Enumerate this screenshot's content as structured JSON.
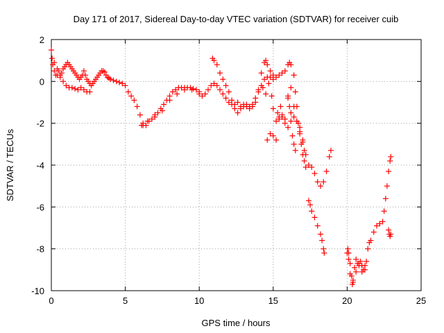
{
  "chart_data": {
    "type": "scatter",
    "title": "Day 171 of 2017, Sidereal Day-to-day VTEC variation (SDTVAR) for receiver cuib",
    "xlabel": "GPS time / hours",
    "ylabel": "SDTVAR / TECUs",
    "xlim": [
      0,
      25
    ],
    "ylim": [
      -10,
      2
    ],
    "x_ticks": [
      0,
      5,
      10,
      15,
      20,
      25
    ],
    "y_ticks": [
      -10,
      -8,
      -6,
      -4,
      -2,
      0,
      2
    ],
    "grid": true,
    "marker": "+",
    "color": "#ff0000",
    "series": [
      {
        "points": [
          [
            0.0,
            1.5
          ],
          [
            0.05,
            1.1
          ],
          [
            0.1,
            0.8
          ],
          [
            0.2,
            0.5
          ],
          [
            0.3,
            0.3
          ],
          [
            0.4,
            0.3
          ],
          [
            0.5,
            0.5
          ],
          [
            0.6,
            0.3
          ],
          [
            0.7,
            0.4
          ],
          [
            0.8,
            0.6
          ],
          [
            0.9,
            0.7
          ],
          [
            1.0,
            0.8
          ],
          [
            1.1,
            0.9
          ],
          [
            1.2,
            0.8
          ],
          [
            1.3,
            0.7
          ],
          [
            1.4,
            0.6
          ],
          [
            1.5,
            0.5
          ],
          [
            1.6,
            0.4
          ],
          [
            1.7,
            0.3
          ],
          [
            1.8,
            0.2
          ],
          [
            1.9,
            0.1
          ],
          [
            2.0,
            0.2
          ],
          [
            2.1,
            0.3
          ],
          [
            2.2,
            0.5
          ],
          [
            2.3,
            0.3
          ],
          [
            2.4,
            0.1
          ],
          [
            2.5,
            0.0
          ],
          [
            2.6,
            -0.1
          ],
          [
            2.7,
            -0.2
          ],
          [
            2.8,
            -0.1
          ],
          [
            2.9,
            0.0
          ],
          [
            3.0,
            0.1
          ],
          [
            3.1,
            0.2
          ],
          [
            3.2,
            0.3
          ],
          [
            3.3,
            0.4
          ],
          [
            3.4,
            0.5
          ],
          [
            3.5,
            0.5
          ],
          [
            3.6,
            0.45
          ],
          [
            3.7,
            0.3
          ],
          [
            3.8,
            0.2
          ],
          [
            3.9,
            0.15
          ],
          [
            4.0,
            0.1
          ],
          [
            4.2,
            0.05
          ],
          [
            4.4,
            0.0
          ],
          [
            4.6,
            -0.05
          ],
          [
            4.8,
            -0.1
          ],
          [
            5.0,
            -0.2
          ],
          [
            0.2,
            0.9
          ],
          [
            0.4,
            0.6
          ],
          [
            0.6,
            0.2
          ],
          [
            0.8,
            0.0
          ],
          [
            1.0,
            -0.2
          ],
          [
            1.2,
            -0.3
          ],
          [
            1.4,
            -0.3
          ],
          [
            1.6,
            -0.35
          ],
          [
            1.8,
            -0.4
          ],
          [
            2.0,
            -0.3
          ],
          [
            2.2,
            -0.4
          ],
          [
            2.4,
            -0.5
          ],
          [
            2.6,
            -0.5
          ],
          [
            5.2,
            -0.5
          ],
          [
            5.4,
            -0.7
          ],
          [
            5.6,
            -0.9
          ],
          [
            5.8,
            -1.2
          ],
          [
            6.0,
            -1.6
          ],
          [
            6.1,
            -2.1
          ],
          [
            6.2,
            -2.0
          ],
          [
            6.4,
            -2.1
          ],
          [
            6.6,
            -1.9
          ],
          [
            6.8,
            -1.8
          ],
          [
            7.0,
            -1.6
          ],
          [
            7.2,
            -1.5
          ],
          [
            7.4,
            -1.3
          ],
          [
            7.6,
            -1.1
          ],
          [
            7.8,
            -0.9
          ],
          [
            8.0,
            -0.7
          ],
          [
            8.2,
            -0.5
          ],
          [
            8.4,
            -0.4
          ],
          [
            8.6,
            -0.3
          ],
          [
            8.8,
            -0.3
          ],
          [
            9.0,
            -0.3
          ],
          [
            9.2,
            -0.3
          ],
          [
            9.4,
            -0.3
          ],
          [
            9.6,
            -0.35
          ],
          [
            9.8,
            -0.4
          ],
          [
            10.0,
            -0.5
          ],
          [
            10.2,
            -0.7
          ],
          [
            10.4,
            -0.6
          ],
          [
            10.6,
            -0.4
          ],
          [
            10.8,
            -0.2
          ],
          [
            11.0,
            -0.1
          ],
          [
            11.2,
            -0.2
          ],
          [
            11.4,
            -0.4
          ],
          [
            11.6,
            -0.6
          ],
          [
            11.8,
            -0.8
          ],
          [
            12.0,
            -1.0
          ],
          [
            12.2,
            -1.1
          ],
          [
            12.4,
            -1.3
          ],
          [
            12.6,
            -1.5
          ],
          [
            12.8,
            -1.3
          ],
          [
            13.0,
            -1.2
          ],
          [
            13.2,
            -1.1
          ],
          [
            13.4,
            -1.2
          ],
          [
            13.6,
            -1.1
          ],
          [
            13.8,
            -0.8
          ],
          [
            14.0,
            -0.5
          ],
          [
            14.2,
            -0.2
          ],
          [
            14.4,
            0.1
          ],
          [
            14.6,
            0.2
          ],
          [
            14.8,
            0.2
          ],
          [
            15.0,
            0.1
          ],
          [
            6.2,
            -2.1
          ],
          [
            6.5,
            -1.9
          ],
          [
            7.0,
            -1.7
          ],
          [
            7.5,
            -1.4
          ],
          [
            8.0,
            -0.9
          ],
          [
            8.5,
            -0.6
          ],
          [
            9.0,
            -0.4
          ],
          [
            9.5,
            -0.4
          ],
          [
            10.0,
            -0.6
          ],
          [
            10.9,
            1.1
          ],
          [
            11.0,
            1.0
          ],
          [
            11.2,
            0.8
          ],
          [
            11.4,
            0.4
          ],
          [
            11.6,
            0.1
          ],
          [
            11.8,
            -0.2
          ],
          [
            12.0,
            -0.5
          ],
          [
            12.2,
            -0.9
          ],
          [
            12.4,
            -1.1
          ],
          [
            12.6,
            -1.0
          ],
          [
            12.8,
            -1.2
          ],
          [
            13.0,
            -1.1
          ],
          [
            13.2,
            -1.2
          ],
          [
            13.4,
            -1.3
          ],
          [
            13.6,
            -1.2
          ],
          [
            13.8,
            -1.0
          ],
          [
            14.0,
            -0.4
          ],
          [
            14.2,
            0.4
          ],
          [
            14.4,
            0.9
          ],
          [
            14.5,
            1.0
          ],
          [
            14.6,
            0.8
          ],
          [
            14.8,
            0.5
          ],
          [
            15.0,
            0.3
          ],
          [
            15.2,
            0.2
          ],
          [
            15.4,
            0.3
          ],
          [
            15.6,
            0.4
          ],
          [
            15.8,
            0.5
          ],
          [
            16.0,
            0.8
          ],
          [
            16.1,
            0.9
          ],
          [
            16.2,
            0.8
          ],
          [
            16.4,
            0.3
          ],
          [
            16.5,
            -0.5
          ],
          [
            16.6,
            -1.2
          ],
          [
            16.7,
            -2.0
          ],
          [
            16.8,
            -2.5
          ],
          [
            16.9,
            -3.0
          ],
          [
            17.0,
            -3.5
          ],
          [
            17.1,
            -3.8
          ],
          [
            14.3,
            -0.3
          ],
          [
            14.5,
            -0.6
          ],
          [
            14.7,
            -0.1
          ],
          [
            14.9,
            -0.7
          ],
          [
            15.0,
            -1.3
          ],
          [
            15.2,
            -1.9
          ],
          [
            15.3,
            -1.5
          ],
          [
            15.4,
            -1.7
          ],
          [
            15.6,
            -1.6
          ],
          [
            15.8,
            -2.0
          ],
          [
            16.0,
            -2.2
          ],
          [
            16.2,
            -1.5
          ],
          [
            16.4,
            -1.7
          ],
          [
            16.6,
            -1.9
          ],
          [
            16.8,
            -2.2
          ],
          [
            17.0,
            -2.8
          ],
          [
            17.1,
            -3.3
          ],
          [
            17.2,
            -3.5
          ],
          [
            14.6,
            -2.8
          ],
          [
            14.8,
            -2.5
          ],
          [
            15.0,
            -2.6
          ],
          [
            15.2,
            -2.8
          ],
          [
            15.4,
            -1.8
          ],
          [
            15.5,
            -1.2
          ],
          [
            15.6,
            -1.7
          ],
          [
            15.8,
            -1.8
          ],
          [
            16.0,
            -0.7
          ],
          [
            16.2,
            -0.3
          ],
          [
            16.4,
            -1.2
          ],
          [
            16.6,
            -1.9
          ],
          [
            16.8,
            -2.4
          ],
          [
            17.0,
            -2.9
          ],
          [
            16.0,
            -0.8
          ],
          [
            16.1,
            -1.2
          ],
          [
            16.2,
            -1.9
          ],
          [
            16.3,
            -2.6
          ],
          [
            16.4,
            -3.0
          ],
          [
            16.5,
            -3.3
          ],
          [
            17.2,
            -4.1
          ],
          [
            17.4,
            -4.0
          ],
          [
            17.6,
            -4.1
          ],
          [
            17.8,
            -4.4
          ],
          [
            18.0,
            -4.8
          ],
          [
            18.2,
            -5.0
          ],
          [
            18.4,
            -4.8
          ],
          [
            18.6,
            -4.3
          ],
          [
            18.8,
            -3.6
          ],
          [
            18.9,
            -3.3
          ],
          [
            17.4,
            -5.7
          ],
          [
            17.5,
            -5.9
          ],
          [
            17.6,
            -6.2
          ],
          [
            17.8,
            -6.5
          ],
          [
            18.0,
            -6.9
          ],
          [
            18.2,
            -7.3
          ],
          [
            18.3,
            -7.6
          ],
          [
            18.4,
            -8.0
          ],
          [
            18.45,
            -8.2
          ],
          [
            20.0,
            -8.2
          ],
          [
            20.05,
            -8.0
          ],
          [
            20.1,
            -8.2
          ],
          [
            20.2,
            -8.7
          ],
          [
            20.3,
            -9.3
          ],
          [
            20.35,
            -9.7
          ],
          [
            20.4,
            -9.5
          ],
          [
            20.5,
            -8.9
          ],
          [
            20.6,
            -8.5
          ],
          [
            20.7,
            -8.7
          ],
          [
            20.8,
            -8.8
          ],
          [
            20.9,
            -8.6
          ],
          [
            21.0,
            -8.8
          ],
          [
            21.1,
            -9.0
          ],
          [
            21.2,
            -8.8
          ],
          [
            21.3,
            -8.6
          ],
          [
            21.4,
            -8.0
          ],
          [
            21.5,
            -7.7
          ],
          [
            21.6,
            -7.6
          ],
          [
            21.8,
            -7.2
          ],
          [
            22.0,
            -6.9
          ],
          [
            22.2,
            -6.8
          ],
          [
            22.4,
            -6.7
          ],
          [
            22.5,
            -6.2
          ],
          [
            22.6,
            -5.6
          ],
          [
            22.7,
            -5.0
          ],
          [
            22.8,
            -4.3
          ],
          [
            22.9,
            -3.8
          ],
          [
            22.95,
            -3.6
          ],
          [
            20.1,
            -8.5
          ],
          [
            20.2,
            -9.2
          ],
          [
            20.4,
            -9.6
          ],
          [
            20.6,
            -9.1
          ],
          [
            20.8,
            -8.7
          ],
          [
            21.0,
            -9.1
          ],
          [
            21.2,
            -9.0
          ],
          [
            22.8,
            -7.1
          ],
          [
            22.85,
            -7.3
          ],
          [
            22.9,
            -7.4
          ],
          [
            22.95,
            -7.3
          ]
        ]
      }
    ]
  }
}
